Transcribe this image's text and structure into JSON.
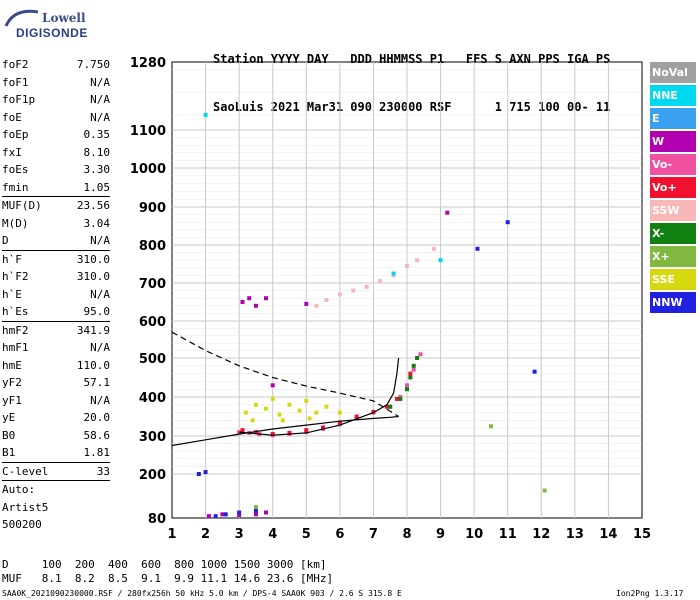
{
  "logo": {
    "top_text": "Lowell",
    "bottom_text": "DIGISONDE"
  },
  "header": {
    "line1": "Station YYYY DAY   DDD HHMMSS P1   FFS S AXN PPS IGA PS",
    "line2": "SaoLuis 2021 Mar31 090 230000 RSF      1 715 100 00- 11"
  },
  "params": {
    "group1": [
      {
        "k": "foF2",
        "v": "7.750"
      },
      {
        "k": "foF1",
        "v": "N/A"
      },
      {
        "k": "foF1p",
        "v": "N/A"
      },
      {
        "k": "foE",
        "v": "N/A"
      },
      {
        "k": "foEp",
        "v": "0.35"
      },
      {
        "k": "fxI",
        "v": "8.10"
      },
      {
        "k": "foEs",
        "v": "3.30"
      },
      {
        "k": "fmin",
        "v": "1.05"
      }
    ],
    "group2": [
      {
        "k": "MUF(D)",
        "v": "23.56"
      },
      {
        "k": "M(D)",
        "v": "3.04"
      },
      {
        "k": "D",
        "v": "N/A"
      }
    ],
    "group3": [
      {
        "k": "h`F",
        "v": "310.0"
      },
      {
        "k": "h`F2",
        "v": "310.0"
      },
      {
        "k": "h`E",
        "v": "N/A"
      },
      {
        "k": "h`Es",
        "v": "95.0"
      }
    ],
    "group4": [
      {
        "k": "hmF2",
        "v": "341.9"
      },
      {
        "k": "hmF1",
        "v": "N/A"
      },
      {
        "k": "hmE",
        "v": "110.0"
      },
      {
        "k": "yF2",
        "v": "57.1"
      },
      {
        "k": "yF1",
        "v": "N/A"
      },
      {
        "k": "yE",
        "v": "20.0"
      },
      {
        "k": "B0",
        "v": "58.6"
      },
      {
        "k": "B1",
        "v": "1.81"
      }
    ],
    "group5": [
      {
        "k": "C-level",
        "v": "33"
      }
    ],
    "group6": [
      {
        "k": "Auto:",
        "v": ""
      },
      {
        "k": "Artist5",
        "v": ""
      },
      {
        "k": "500200",
        "v": ""
      }
    ]
  },
  "legend": [
    {
      "label": "NoVal",
      "color": "#a0a0a0"
    },
    {
      "label": "NNE",
      "color": "#00d8f0"
    },
    {
      "label": "E",
      "color": "#3aa0f0"
    },
    {
      "label": "W",
      "color": "#b000b0"
    },
    {
      "label": "Vo-",
      "color": "#f050a0"
    },
    {
      "label": "Vo+",
      "color": "#f01030"
    },
    {
      "label": "SSW",
      "color": "#f8b8b8"
    },
    {
      "label": "X-",
      "color": "#108010"
    },
    {
      "label": "X+",
      "color": "#80b840"
    },
    {
      "label": "SSE",
      "color": "#d8d810"
    },
    {
      "label": "NNW",
      "color": "#2020e0"
    }
  ],
  "footer": {
    "d_line": "D     100  200  400  600  800 1000 1500 3000 [km]",
    "muf_line": "MUF   8.1  8.2  8.5  9.1  9.9 11.1 14.6 23.6 [MHz]",
    "file_line": "SAA0K_2021090230000.RSF / 280fx256h 50 kHz 5.0 km / DPS-4 SAA0K 903 / 2.6 S 315.8 E",
    "version": "Ion2Png 1.3.17"
  },
  "chart_data": {
    "type": "scatter",
    "title": "",
    "xlabel": "",
    "ylabel": "",
    "xlim": [
      1,
      15
    ],
    "ylim": [
      80,
      1280
    ],
    "x_ticks": [
      1,
      2,
      3,
      4,
      5,
      6,
      7,
      8,
      9,
      10,
      11,
      12,
      13,
      14,
      15
    ],
    "y_ticks": [
      80,
      200,
      300,
      400,
      500,
      600,
      700,
      800,
      900,
      1000,
      1100,
      1280
    ],
    "grid": true,
    "y_scale": "nonlinear",
    "legend_position": "right",
    "series": [
      {
        "name": "Vo-",
        "color": "#f050a0",
        "points": [
          [
            3.0,
            310
          ],
          [
            3.3,
            308
          ],
          [
            3.6,
            305
          ],
          [
            4.0,
            302
          ],
          [
            4.5,
            305
          ],
          [
            5.0,
            310
          ],
          [
            5.5,
            318
          ],
          [
            6.0,
            330
          ],
          [
            6.5,
            345
          ],
          [
            7.0,
            360
          ],
          [
            7.5,
            375
          ],
          [
            7.8,
            400
          ],
          [
            8.0,
            430
          ],
          [
            8.2,
            470
          ],
          [
            8.4,
            510
          ]
        ]
      },
      {
        "name": "Vo+",
        "color": "#f01030",
        "points": [
          [
            3.1,
            315
          ],
          [
            3.5,
            310
          ],
          [
            4.0,
            305
          ],
          [
            4.5,
            308
          ],
          [
            5.0,
            315
          ],
          [
            5.5,
            322
          ],
          [
            6.0,
            335
          ],
          [
            6.5,
            350
          ],
          [
            7.0,
            362
          ],
          [
            7.4,
            375
          ],
          [
            7.7,
            395
          ],
          [
            8.1,
            460
          ]
        ]
      },
      {
        "name": "X-",
        "color": "#108010",
        "points": [
          [
            7.5,
            375
          ],
          [
            7.8,
            395
          ],
          [
            8.0,
            420
          ],
          [
            8.1,
            450
          ],
          [
            8.2,
            480
          ],
          [
            8.3,
            500
          ]
        ]
      },
      {
        "name": "SSE",
        "color": "#d8d810",
        "points": [
          [
            3.2,
            360
          ],
          [
            3.5,
            380
          ],
          [
            3.8,
            370
          ],
          [
            4.0,
            395
          ],
          [
            4.2,
            355
          ],
          [
            4.5,
            380
          ],
          [
            4.8,
            365
          ],
          [
            5.0,
            390
          ],
          [
            5.3,
            360
          ],
          [
            5.6,
            375
          ],
          [
            6.0,
            360
          ],
          [
            3.4,
            340
          ],
          [
            4.3,
            340
          ],
          [
            5.1,
            345
          ]
        ]
      },
      {
        "name": "W",
        "color": "#b000b0",
        "points": [
          [
            2.1,
            85
          ],
          [
            2.5,
            90
          ],
          [
            3.0,
            88
          ],
          [
            3.5,
            90
          ],
          [
            3.8,
            95
          ],
          [
            3.1,
            650
          ],
          [
            3.3,
            660
          ],
          [
            3.5,
            640
          ],
          [
            3.8,
            660
          ],
          [
            5.0,
            645
          ],
          [
            4.0,
            430
          ],
          [
            9.2,
            885
          ]
        ]
      },
      {
        "name": "NNW",
        "color": "#2020e0",
        "points": [
          [
            1.8,
            200
          ],
          [
            2.0,
            205
          ],
          [
            2.3,
            85
          ],
          [
            2.6,
            90
          ],
          [
            3.0,
            95
          ],
          [
            3.5,
            100
          ],
          [
            10.1,
            790
          ],
          [
            11.0,
            860
          ],
          [
            11.8,
            465
          ]
        ]
      },
      {
        "name": "SSW",
        "color": "#f8b8b8",
        "points": [
          [
            5.3,
            640
          ],
          [
            5.6,
            655
          ],
          [
            6.0,
            670
          ],
          [
            6.4,
            680
          ],
          [
            6.8,
            690
          ],
          [
            7.2,
            705
          ],
          [
            7.6,
            720
          ],
          [
            8.0,
            745
          ],
          [
            8.3,
            760
          ],
          [
            8.8,
            790
          ]
        ]
      },
      {
        "name": "NNE",
        "color": "#00d8f0",
        "points": [
          [
            7.6,
            725
          ],
          [
            9.0,
            760
          ],
          [
            2.0,
            1140
          ]
        ]
      },
      {
        "name": "X+",
        "color": "#80b840",
        "points": [
          [
            3.5,
            110
          ],
          [
            10.5,
            325
          ],
          [
            12.1,
            155
          ]
        ]
      }
    ],
    "lines": [
      {
        "name": "virtual_height_profile",
        "style": "solid",
        "points": [
          [
            1,
            275
          ],
          [
            2,
            290
          ],
          [
            3,
            305
          ],
          [
            4,
            318
          ],
          [
            5,
            328
          ],
          [
            6,
            338
          ],
          [
            7,
            345
          ],
          [
            7.5,
            348
          ],
          [
            7.75,
            350
          ]
        ]
      },
      {
        "name": "virtual_height_trace",
        "style": "solid",
        "points": [
          [
            3,
            310
          ],
          [
            4,
            302
          ],
          [
            5,
            308
          ],
          [
            6,
            328
          ],
          [
            7,
            360
          ],
          [
            7.4,
            380
          ],
          [
            7.6,
            410
          ],
          [
            7.7,
            460
          ],
          [
            7.75,
            500
          ]
        ]
      },
      {
        "name": "real_height_profile",
        "style": "dashed",
        "points": [
          [
            1,
            570
          ],
          [
            1.5,
            545
          ],
          [
            2,
            520
          ],
          [
            3,
            480
          ],
          [
            4,
            450
          ],
          [
            5,
            428
          ],
          [
            6,
            410
          ],
          [
            7,
            390
          ],
          [
            7.75,
            350
          ]
        ]
      }
    ]
  }
}
